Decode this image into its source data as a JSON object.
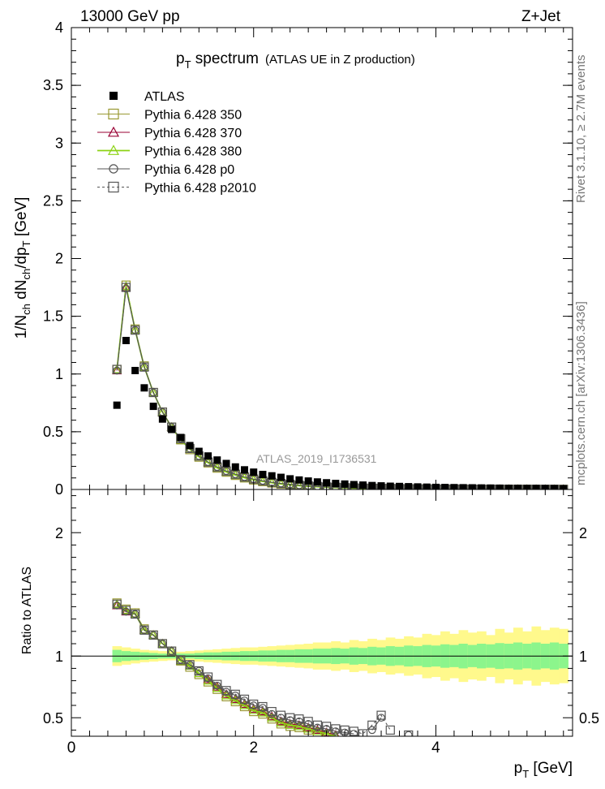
{
  "header": {
    "beam": "13000 GeV pp",
    "process": "Z+Jet"
  },
  "side_labels": {
    "rivet": "Rivet 3.1.10, ≥ 2.7M events",
    "mcplots": "mcplots.cern.ch [arXiv:1306.3436]"
  },
  "analysis_id": "ATLAS_2019_I1736531",
  "colors": {
    "atlas": "#000000",
    "p350": "#999933",
    "p370": "#990033",
    "p380": "#8cd214",
    "p0": "#555555",
    "p2010": "#555555",
    "band_inner": "#8cf58c",
    "band_outer": "#fff98c"
  },
  "chart_data": [
    {
      "type": "scatter",
      "panel": "main",
      "title_main": "p",
      "title_sub": "T",
      "title_rest": " spectrum",
      "title_paren": "(ATLAS UE in Z production)",
      "ylabel": "1/N_ch dN_ch/dp_T [GeV]",
      "xlim": [
        0,
        5.5
      ],
      "ylim": [
        0,
        4
      ],
      "yticks": [
        "0",
        "0.5",
        "1",
        "1.5",
        "2",
        "2.5",
        "3",
        "3.5",
        "4"
      ],
      "legend_position": "top-left",
      "x": [
        0.5,
        0.6,
        0.7,
        0.8,
        0.9,
        1.0,
        1.1,
        1.2,
        1.3,
        1.4,
        1.5,
        1.6,
        1.7,
        1.8,
        1.9,
        2.0,
        2.1,
        2.2,
        2.3,
        2.4,
        2.5,
        2.6,
        2.7,
        2.8,
        2.9,
        3.0,
        3.1,
        3.2,
        3.3,
        3.4,
        3.5,
        3.6,
        3.7,
        3.8,
        3.9,
        4.0,
        4.1,
        4.2,
        4.3,
        4.4,
        4.5,
        4.6,
        4.7,
        4.8,
        4.9,
        5.0,
        5.1,
        5.2,
        5.3,
        5.4
      ],
      "series": [
        {
          "name": "ATLAS",
          "style": "atlas",
          "values": [
            0.73,
            1.29,
            1.03,
            0.88,
            0.72,
            0.61,
            0.52,
            0.45,
            0.38,
            0.33,
            0.29,
            0.255,
            0.225,
            0.195,
            0.17,
            0.15,
            0.13,
            0.118,
            0.105,
            0.092,
            0.082,
            0.073,
            0.065,
            0.058,
            0.052,
            0.047,
            0.042,
            0.038,
            0.034,
            0.031,
            0.028,
            0.026,
            0.024,
            0.022,
            0.02,
            0.018,
            0.017,
            0.016,
            0.015,
            0.014,
            0.013,
            0.012,
            0.011,
            0.01,
            0.01,
            0.009,
            0.009,
            0.008,
            0.008,
            0.007
          ]
        },
        {
          "name": "Pythia 6.428 350",
          "style": "p350",
          "values": [
            1.04,
            1.77,
            1.39,
            1.07,
            0.84,
            0.67,
            0.54,
            0.43,
            0.345,
            0.28,
            0.23,
            0.185,
            0.15,
            0.122,
            0.1,
            0.082,
            0.068,
            0.056,
            0.047,
            0.039,
            0.032,
            0.027,
            0.023,
            0.019,
            0.016,
            0.014,
            0.012,
            0.01,
            0.009,
            0.008,
            0.007,
            0.006,
            0.005,
            0.005,
            0.004,
            0.004,
            0.003,
            0.003,
            0.003,
            0.003,
            0.002,
            0.002,
            0.002,
            0.002,
            0.002,
            0.002,
            0.001,
            0.001,
            0.001,
            0.001
          ]
        },
        {
          "name": "Pythia 6.428 370",
          "style": "p370",
          "values": [
            1.03,
            1.75,
            1.38,
            1.06,
            0.84,
            0.67,
            0.54,
            0.43,
            0.35,
            0.285,
            0.235,
            0.19,
            0.155,
            0.127,
            0.104,
            0.086,
            0.071,
            0.059,
            0.049,
            0.041,
            0.034,
            0.029,
            0.024,
            0.021,
            0.018,
            0.015,
            0.013,
            0.011,
            0.01,
            0.009,
            0.008,
            0.007,
            0.006,
            0.005,
            0.005,
            0.004,
            0.004,
            0.003,
            0.003,
            0.003,
            0.003,
            0.002,
            0.002,
            0.002,
            0.002,
            0.002,
            0.002,
            0.001,
            0.001,
            0.001
          ]
        },
        {
          "name": "Pythia 6.428 380",
          "style": "p380",
          "values": [
            1.04,
            1.76,
            1.38,
            1.06,
            0.84,
            0.67,
            0.54,
            0.43,
            0.35,
            0.285,
            0.233,
            0.188,
            0.153,
            0.125,
            0.102,
            0.084,
            0.07,
            0.058,
            0.048,
            0.04,
            0.033,
            0.028,
            0.023,
            0.02,
            0.017,
            0.014,
            0.012,
            0.01,
            0.009,
            0.008,
            0.007,
            0.006,
            0.005,
            0.005,
            0.004,
            0.004,
            0.003,
            0.003,
            0.003,
            0.003,
            0.002,
            0.002,
            0.002,
            0.002,
            0.002,
            0.002,
            0.001,
            0.001,
            0.001,
            0.001
          ]
        },
        {
          "name": "Pythia 6.428 p0",
          "style": "p0",
          "values": [
            1.03,
            1.74,
            1.38,
            1.06,
            0.84,
            0.67,
            0.54,
            0.44,
            0.355,
            0.29,
            0.238,
            0.195,
            0.16,
            0.132,
            0.108,
            0.09,
            0.075,
            0.062,
            0.052,
            0.044,
            0.037,
            0.031,
            0.026,
            0.022,
            0.019,
            0.016,
            0.014,
            0.012,
            0.011,
            0.01,
            0.009,
            0.008,
            0.007,
            0.006,
            0.005,
            0.005,
            0.004,
            0.004,
            0.004,
            0.003,
            0.003,
            0.003,
            0.003,
            0.002,
            0.002,
            0.002,
            0.002,
            0.002,
            0.002,
            0.001
          ]
        },
        {
          "name": "Pythia 6.428 p2010",
          "style": "p2010",
          "values": [
            1.04,
            1.75,
            1.38,
            1.06,
            0.84,
            0.67,
            0.54,
            0.44,
            0.355,
            0.29,
            0.238,
            0.195,
            0.16,
            0.132,
            0.108,
            0.09,
            0.075,
            0.062,
            0.052,
            0.044,
            0.037,
            0.031,
            0.026,
            0.022,
            0.019,
            0.016,
            0.014,
            0.012,
            0.011,
            0.01,
            0.009,
            0.008,
            0.007,
            0.006,
            0.005,
            0.005,
            0.004,
            0.004,
            0.004,
            0.003,
            0.003,
            0.003,
            0.003,
            0.002,
            0.002,
            0.002,
            0.002,
            0.002,
            0.002,
            0.001
          ]
        }
      ]
    },
    {
      "type": "line",
      "panel": "ratio",
      "ylabel": "Ratio to ATLAS",
      "xlabel_main": "p",
      "xlabel_sub": "T",
      "xlabel_rest": " [GeV]",
      "xlim": [
        0,
        5.5
      ],
      "ylim": [
        0.35,
        2.35
      ],
      "yticks": [
        "0.5",
        "1",
        "2"
      ],
      "xticks": [
        "0",
        "2",
        "4"
      ],
      "x": [
        0.5,
        0.6,
        0.7,
        0.8,
        0.9,
        1.0,
        1.1,
        1.2,
        1.3,
        1.4,
        1.5,
        1.6,
        1.7,
        1.8,
        1.9,
        2.0,
        2.1,
        2.2,
        2.3,
        2.4,
        2.5,
        2.6,
        2.7,
        2.8,
        2.9,
        3.0,
        3.1,
        3.2,
        3.3,
        3.4,
        3.5,
        3.6,
        3.7,
        3.8
      ],
      "band_inner_half": [
        0.05,
        0.04,
        0.035,
        0.03,
        0.025,
        0.02,
        0.02,
        0.02,
        0.02,
        0.025,
        0.03,
        0.03,
        0.035,
        0.035,
        0.04,
        0.04,
        0.045,
        0.045,
        0.05,
        0.05,
        0.055,
        0.055,
        0.06,
        0.06,
        0.065,
        0.06,
        0.07,
        0.065,
        0.075,
        0.07,
        0.08,
        0.075,
        0.085,
        0.08,
        0.09,
        0.085,
        0.095,
        0.09,
        0.1,
        0.09,
        0.1,
        0.095,
        0.105,
        0.1,
        0.11,
        0.1,
        0.11,
        0.1,
        0.11,
        0.1
      ],
      "band_outer_half": [
        0.08,
        0.07,
        0.06,
        0.05,
        0.045,
        0.04,
        0.035,
        0.035,
        0.04,
        0.045,
        0.05,
        0.055,
        0.06,
        0.065,
        0.07,
        0.07,
        0.075,
        0.08,
        0.085,
        0.09,
        0.095,
        0.1,
        0.11,
        0.11,
        0.12,
        0.11,
        0.13,
        0.12,
        0.14,
        0.13,
        0.15,
        0.14,
        0.16,
        0.15,
        0.18,
        0.17,
        0.2,
        0.18,
        0.21,
        0.19,
        0.2,
        0.17,
        0.22,
        0.19,
        0.23,
        0.2,
        0.24,
        0.21,
        0.23,
        0.22
      ],
      "series": [
        {
          "name": "Pythia 6.428 350",
          "style": "p350",
          "values": [
            1.43,
            1.38,
            1.35,
            1.22,
            1.17,
            1.1,
            1.04,
            0.96,
            0.91,
            0.85,
            0.79,
            0.73,
            0.67,
            0.63,
            0.59,
            0.55,
            0.53,
            0.49,
            0.45,
            0.43,
            0.42,
            0.4,
            0.38,
            0.36,
            null,
            null,
            null,
            null,
            null,
            null,
            null,
            null,
            null,
            null
          ]
        },
        {
          "name": "Pythia 6.428 370",
          "style": "p370",
          "values": [
            1.41,
            1.36,
            1.34,
            1.21,
            1.17,
            1.1,
            1.04,
            0.96,
            0.92,
            0.86,
            0.81,
            0.75,
            0.69,
            0.65,
            0.61,
            0.57,
            0.55,
            0.51,
            0.47,
            0.45,
            0.44,
            0.42,
            0.4,
            0.38,
            0.36,
            null,
            null,
            null,
            null,
            null,
            null,
            null,
            null,
            null
          ]
        },
        {
          "name": "Pythia 6.428 380",
          "style": "p380",
          "values": [
            1.42,
            1.37,
            1.34,
            1.21,
            1.17,
            1.1,
            1.04,
            0.96,
            0.92,
            0.86,
            0.8,
            0.74,
            0.68,
            0.64,
            0.6,
            0.56,
            0.54,
            0.5,
            0.46,
            0.44,
            0.43,
            0.41,
            0.39,
            0.37,
            0.35,
            null,
            null,
            null,
            null,
            null,
            null,
            null,
            null,
            null
          ]
        },
        {
          "name": "Pythia 6.428 p0",
          "style": "p0",
          "values": [
            1.41,
            1.36,
            1.34,
            1.21,
            1.17,
            1.1,
            1.04,
            0.97,
            0.93,
            0.88,
            0.82,
            0.76,
            0.71,
            0.68,
            0.64,
            0.6,
            0.58,
            0.53,
            0.5,
            0.48,
            0.47,
            0.45,
            0.42,
            0.41,
            0.39,
            0.38,
            0.37,
            null,
            0.4,
            0.5,
            null,
            null,
            0.36,
            null
          ]
        },
        {
          "name": "Pythia 6.428 p2010",
          "style": "p2010",
          "values": [
            1.42,
            1.37,
            1.34,
            1.21,
            1.17,
            1.1,
            1.04,
            0.97,
            0.93,
            0.88,
            0.83,
            0.77,
            0.72,
            0.69,
            0.65,
            0.61,
            0.59,
            0.55,
            0.52,
            0.5,
            0.49,
            0.47,
            0.44,
            0.43,
            0.41,
            0.4,
            0.39,
            0.37,
            0.44,
            0.52,
            0.4,
            null,
            0.36,
            null
          ]
        }
      ]
    }
  ]
}
